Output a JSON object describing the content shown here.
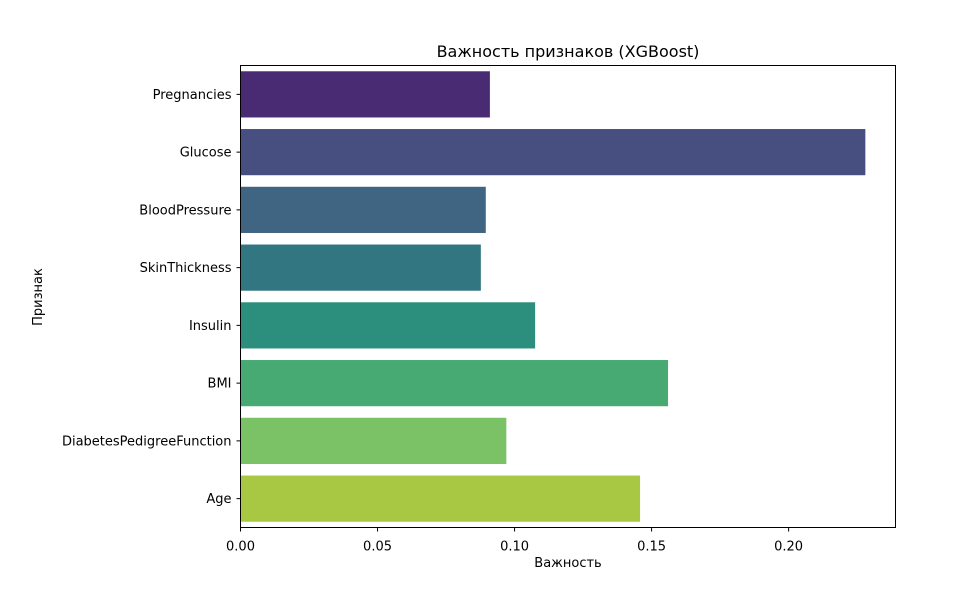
{
  "chart_data": {
    "type": "bar",
    "orientation": "horizontal",
    "title": "Важность признаков (XGBoost)",
    "xlabel": "Важность",
    "ylabel": "Признак",
    "categories": [
      "Pregnancies",
      "Glucose",
      "BloodPressure",
      "SkinThickness",
      "Insulin",
      "BMI",
      "DiabetesPedigreeFunction",
      "Age"
    ],
    "values": [
      0.091,
      0.228,
      0.0895,
      0.0877,
      0.1075,
      0.156,
      0.097,
      0.1458
    ],
    "colors": [
      "#482b72",
      "#464f80",
      "#3f6582",
      "#327681",
      "#2c8f7e",
      "#46aa72",
      "#7bc165",
      "#a8c843"
    ],
    "xlim": [
      0,
      0.239
    ],
    "xticks": [
      0,
      0.05,
      0.1,
      0.15,
      0.2
    ],
    "xtick_labels": [
      "0.00",
      "0.05",
      "0.10",
      "0.15",
      "0.20"
    ],
    "grid": false,
    "legend": false
  }
}
